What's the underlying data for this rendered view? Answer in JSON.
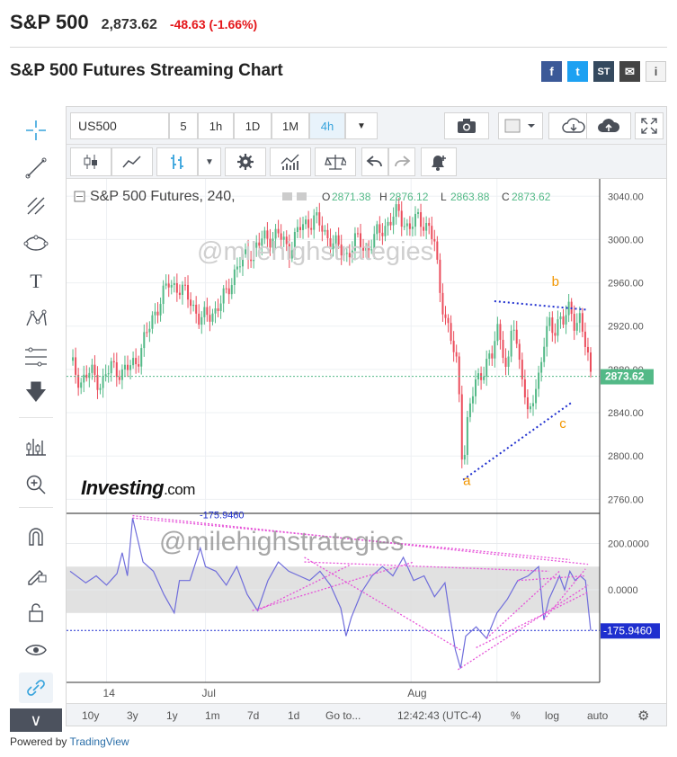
{
  "quote": {
    "symbol": "S&P 500",
    "price": "2,873.62",
    "change": "-48.63 (-1.66%)"
  },
  "page_title": "S&P 500 Futures Streaming Chart",
  "share": {
    "facebook": "f",
    "twitter": "t",
    "stocktwits": "ST",
    "email": "✉",
    "info": "i"
  },
  "toolbar": {
    "symbol": "US500",
    "intervals": [
      "5",
      "1h",
      "1D",
      "1M",
      "4h"
    ],
    "active_interval": "4h"
  },
  "legend": {
    "title": "S&P 500 Futures, 240,",
    "o_label": "O",
    "o": "2871.38",
    "h_label": "H",
    "h": "2876.12",
    "l_label": "L",
    "l": "2863.88",
    "c_label": "C",
    "c": "2873.62"
  },
  "watermark": "@milehighstrategies",
  "brand": {
    "name": "Investing",
    "suffix": ".com"
  },
  "bottombar": {
    "ranges": [
      "10y",
      "3y",
      "1y",
      "1m",
      "7d",
      "1d"
    ],
    "goto": "Go to...",
    "time": "12:42:43 (UTC-4)",
    "percent": "%",
    "log": "log",
    "auto": "auto"
  },
  "powered_by": {
    "prefix": "Powered by ",
    "name": "TradingView"
  },
  "colors": {
    "up": "#53b987",
    "down": "#eb4d5c",
    "accent": "#36a3dc",
    "osc": "#6f6ddb",
    "trend": "#1f2fcf",
    "pinkline": "#e653d8",
    "wave": "#f29600"
  },
  "chart_data": [
    {
      "type": "candlestick",
      "title": "S&P 500 Futures, 240,",
      "x_ticks": [
        "14",
        "Jul",
        "Aug"
      ],
      "y_ticks": [
        3040,
        3000,
        2960,
        2920,
        2880,
        2840,
        2800,
        2760
      ],
      "ylim": [
        2747,
        3056
      ],
      "last_price": 2873.62,
      "last_price_label": "2873.62",
      "close_path": [
        [
          0,
          2888
        ],
        [
          0.02,
          2868
        ],
        [
          0.04,
          2878
        ],
        [
          0.06,
          2866
        ],
        [
          0.08,
          2884
        ],
        [
          0.1,
          2876
        ],
        [
          0.13,
          2890
        ],
        [
          0.16,
          2930
        ],
        [
          0.19,
          2960
        ],
        [
          0.21,
          2955
        ],
        [
          0.23,
          2945
        ],
        [
          0.25,
          2925
        ],
        [
          0.28,
          2935
        ],
        [
          0.3,
          2950
        ],
        [
          0.32,
          2975
        ],
        [
          0.34,
          2985
        ],
        [
          0.37,
          3000
        ],
        [
          0.4,
          3005
        ],
        [
          0.42,
          2990
        ],
        [
          0.44,
          3010
        ],
        [
          0.47,
          3020
        ],
        [
          0.49,
          3005
        ],
        [
          0.51,
          2995
        ],
        [
          0.53,
          2985
        ],
        [
          0.55,
          3000
        ],
        [
          0.57,
          2990
        ],
        [
          0.59,
          3005
        ],
        [
          0.61,
          3015
        ],
        [
          0.63,
          3025
        ],
        [
          0.65,
          3010
        ],
        [
          0.67,
          3020
        ],
        [
          0.69,
          3010
        ],
        [
          0.7,
          2995
        ],
        [
          0.71,
          2955
        ],
        [
          0.72,
          2930
        ],
        [
          0.73,
          2910
        ],
        [
          0.745,
          2880
        ],
        [
          0.75,
          2830
        ],
        [
          0.755,
          2785
        ],
        [
          0.76,
          2820
        ],
        [
          0.77,
          2850
        ],
        [
          0.78,
          2870
        ],
        [
          0.8,
          2885
        ],
        [
          0.81,
          2890
        ],
        [
          0.82,
          2920
        ],
        [
          0.83,
          2905
        ],
        [
          0.84,
          2870
        ],
        [
          0.845,
          2900
        ],
        [
          0.85,
          2930
        ],
        [
          0.86,
          2895
        ],
        [
          0.87,
          2875
        ],
        [
          0.875,
          2850
        ],
        [
          0.88,
          2830
        ],
        [
          0.89,
          2855
        ],
        [
          0.9,
          2875
        ],
        [
          0.91,
          2905
        ],
        [
          0.92,
          2920
        ],
        [
          0.93,
          2915
        ],
        [
          0.94,
          2930
        ],
        [
          0.95,
          2925
        ],
        [
          0.96,
          2935
        ],
        [
          0.97,
          2922
        ],
        [
          0.98,
          2930
        ],
        [
          0.99,
          2900
        ],
        [
          1.0,
          2873.62
        ]
      ],
      "annotations": [
        {
          "text": "a",
          "x": 0.755,
          "y": 2773
        },
        {
          "text": "b",
          "x": 0.925,
          "y": 2957
        },
        {
          "text": "c",
          "x": 0.94,
          "y": 2826
        }
      ]
    },
    {
      "type": "line",
      "y_ticks": [
        200,
        0
      ],
      "y_tick_labels": [
        "200.0000",
        "0.0000"
      ],
      "band": [
        -100,
        100
      ],
      "last_value": -175.946,
      "last_value_label": "-175.9460",
      "peak_label": "-175.9460",
      "path": [
        [
          0,
          80
        ],
        [
          0.03,
          30
        ],
        [
          0.05,
          60
        ],
        [
          0.07,
          20
        ],
        [
          0.09,
          70
        ],
        [
          0.1,
          160
        ],
        [
          0.11,
          60
        ],
        [
          0.12,
          310
        ],
        [
          0.14,
          120
        ],
        [
          0.16,
          80
        ],
        [
          0.18,
          -20
        ],
        [
          0.2,
          -100
        ],
        [
          0.21,
          40
        ],
        [
          0.23,
          40
        ],
        [
          0.25,
          180
        ],
        [
          0.26,
          100
        ],
        [
          0.28,
          80
        ],
        [
          0.3,
          20
        ],
        [
          0.32,
          100
        ],
        [
          0.34,
          -20
        ],
        [
          0.36,
          -90
        ],
        [
          0.38,
          40
        ],
        [
          0.4,
          120
        ],
        [
          0.42,
          80
        ],
        [
          0.44,
          60
        ],
        [
          0.46,
          40
        ],
        [
          0.48,
          80
        ],
        [
          0.5,
          20
        ],
        [
          0.52,
          -80
        ],
        [
          0.53,
          -200
        ],
        [
          0.54,
          -120
        ],
        [
          0.56,
          -10
        ],
        [
          0.58,
          60
        ],
        [
          0.6,
          100
        ],
        [
          0.62,
          60
        ],
        [
          0.64,
          140
        ],
        [
          0.66,
          40
        ],
        [
          0.68,
          60
        ],
        [
          0.7,
          -30
        ],
        [
          0.72,
          30
        ],
        [
          0.73,
          -120
        ],
        [
          0.74,
          -260
        ],
        [
          0.75,
          -340
        ],
        [
          0.76,
          -200
        ],
        [
          0.78,
          -160
        ],
        [
          0.8,
          -210
        ],
        [
          0.82,
          -100
        ],
        [
          0.84,
          -40
        ],
        [
          0.86,
          40
        ],
        [
          0.88,
          60
        ],
        [
          0.9,
          100
        ],
        [
          0.91,
          -130
        ],
        [
          0.92,
          -40
        ],
        [
          0.94,
          60
        ],
        [
          0.95,
          0
        ],
        [
          0.96,
          80
        ],
        [
          0.97,
          40
        ],
        [
          0.98,
          60
        ],
        [
          0.99,
          40
        ],
        [
          1.0,
          -176
        ]
      ]
    }
  ]
}
